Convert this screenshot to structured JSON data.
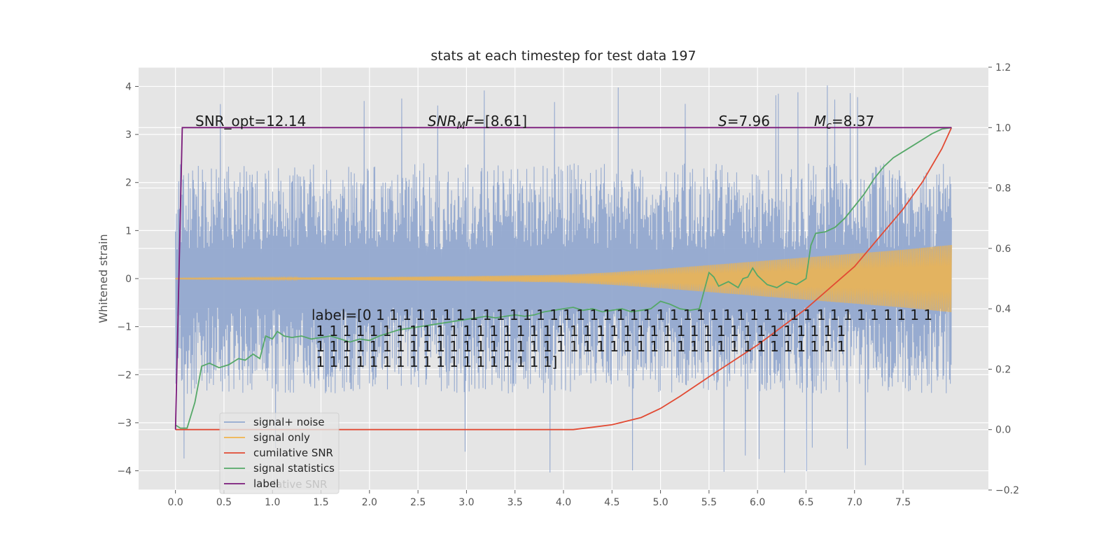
{
  "chart_data": {
    "type": "line",
    "title": "stats at each timestep for test data 197",
    "xlabel": "",
    "ylabel": "Whitened strain",
    "y2label": "",
    "xlim": [
      -0.38,
      8.38
    ],
    "ylim": [
      -4.4,
      4.4
    ],
    "y2lim": [
      -0.2,
      1.2
    ],
    "x_ticks": [
      "0.0",
      "0.5",
      "1.0",
      "1.5",
      "2.0",
      "2.5",
      "3.0",
      "3.5",
      "4.0",
      "4.5",
      "5.0",
      "5.5",
      "6.0",
      "6.5",
      "7.0",
      "7.5"
    ],
    "y_ticks": [
      "4",
      "3",
      "2",
      "1",
      "0",
      "−1",
      "−2",
      "−3",
      "−4"
    ],
    "y2_ticks": [
      "1.2",
      "1.0",
      "0.8",
      "0.6",
      "0.4",
      "0.2",
      "0.0",
      "−0.2"
    ],
    "grid": true,
    "background": "#e5e5e5",
    "legend_position": "lower-left",
    "annotations": {
      "snr_opt": "SNR_opt=12.14",
      "snr_mf": "SNR",
      "snr_mf_sub": "M",
      "snr_mf_tail": "F=[8.61]",
      "s_val": "S=7.96",
      "mc_val": "M",
      "mc_sub": "c",
      "mc_tail": "=8.37",
      "label_lines": [
        "label=[0 1 1 1 1 1 1 1 1 1 1 1 1 1 1 1 1 1 1 1 1 1 1 1 1 1 1 1 1 1 1 1 1 1 1 1 1 1 1 1 1 1 1",
        " 1 1 1 1 1 1 1 1 1 1 1 1 1 1 1 1 1 1 1 1 1 1 1 1 1 1 1 1 1 1 1 1 1 1 1 1 1 1 1 1",
        " 1 1 1 1 1 1 1 1 1 1 1 1 1 1 1 1 1 1 1 1 1 1 1 1 1 1 1 1 1 1 1 1 1 1 1 1 1 1 1 1",
        " 1 1 1 1 1 1 1 1 1 1 1 1 1 1 1 1 1 1]"
      ],
      "ghost_legend_text": "lative SNR"
    },
    "series": [
      {
        "name": "signal+ noise",
        "color": "#92a8cf",
        "axis": "left",
        "noise_amplitude_typical": 2.4,
        "noise_amplitude_max": 4.05,
        "x_range": [
          0.0,
          8.0
        ]
      },
      {
        "name": "signal only",
        "color": "#f0b44c",
        "axis": "left",
        "envelope_x": [
          0.0,
          1.0,
          2.0,
          3.0,
          4.0,
          4.5,
          5.0,
          5.5,
          6.0,
          6.5,
          7.0,
          7.5,
          8.0
        ],
        "envelope_y": [
          0.01,
          0.02,
          0.03,
          0.05,
          0.08,
          0.13,
          0.2,
          0.28,
          0.36,
          0.44,
          0.52,
          0.6,
          0.7
        ]
      },
      {
        "name": "cumilative SNR",
        "color": "#e24a33",
        "axis": "right",
        "x": [
          0.0,
          0.5,
          1.0,
          1.5,
          2.0,
          2.5,
          3.0,
          3.5,
          4.0,
          4.1,
          4.3,
          4.5,
          4.8,
          5.0,
          5.2,
          5.5,
          6.0,
          6.5,
          7.0,
          7.5,
          7.7,
          7.9,
          8.0
        ],
        "y": [
          0.0,
          0.0,
          0.0,
          0.0,
          0.0,
          0.0,
          0.0,
          0.0,
          0.0,
          0.0,
          0.008,
          0.016,
          0.04,
          0.07,
          0.11,
          0.175,
          0.28,
          0.4,
          0.54,
          0.73,
          0.82,
          0.93,
          1.0
        ]
      },
      {
        "name": "signal statistics",
        "color": "#55a868",
        "axis": "right",
        "x": [
          0.0,
          0.05,
          0.12,
          0.2,
          0.27,
          0.35,
          0.45,
          0.55,
          0.65,
          0.72,
          0.8,
          0.87,
          0.93,
          1.0,
          1.05,
          1.12,
          1.2,
          1.3,
          1.4,
          1.5,
          1.6,
          1.7,
          1.8,
          1.9,
          2.0,
          2.1,
          2.2,
          2.3,
          2.4,
          2.5,
          2.6,
          2.7,
          2.8,
          2.9,
          3.0,
          3.1,
          3.2,
          3.3,
          3.4,
          3.5,
          3.6,
          3.7,
          3.8,
          3.9,
          4.0,
          4.1,
          4.2,
          4.3,
          4.4,
          4.5,
          4.6,
          4.7,
          4.8,
          4.9,
          5.0,
          5.1,
          5.2,
          5.3,
          5.4,
          5.5,
          5.55,
          5.6,
          5.7,
          5.8,
          5.85,
          5.9,
          5.95,
          6.0,
          6.1,
          6.2,
          6.3,
          6.4,
          6.5,
          6.55,
          6.6,
          6.7,
          6.8,
          6.9,
          7.0,
          7.1,
          7.2,
          7.3,
          7.4,
          7.5,
          7.6,
          7.7,
          7.8,
          7.9,
          8.0
        ],
        "y": [
          0.015,
          0.005,
          0.005,
          0.09,
          0.21,
          0.22,
          0.205,
          0.215,
          0.235,
          0.23,
          0.25,
          0.235,
          0.31,
          0.3,
          0.325,
          0.31,
          0.305,
          0.31,
          0.3,
          0.305,
          0.31,
          0.3,
          0.29,
          0.3,
          0.295,
          0.31,
          0.32,
          0.33,
          0.335,
          0.34,
          0.345,
          0.35,
          0.355,
          0.36,
          0.365,
          0.37,
          0.375,
          0.37,
          0.375,
          0.38,
          0.375,
          0.38,
          0.39,
          0.395,
          0.4,
          0.405,
          0.395,
          0.4,
          0.39,
          0.395,
          0.4,
          0.39,
          0.395,
          0.4,
          0.425,
          0.415,
          0.4,
          0.395,
          0.4,
          0.52,
          0.505,
          0.475,
          0.49,
          0.47,
          0.5,
          0.505,
          0.535,
          0.51,
          0.48,
          0.47,
          0.49,
          0.48,
          0.5,
          0.61,
          0.65,
          0.655,
          0.67,
          0.7,
          0.74,
          0.78,
          0.83,
          0.87,
          0.9,
          0.92,
          0.94,
          0.96,
          0.98,
          0.995,
          1.0
        ]
      },
      {
        "name": "label",
        "color": "#7a1a7a",
        "axis": "right",
        "x": [
          0.0,
          0.07,
          8.0
        ],
        "y": [
          0.0,
          1.0,
          1.0
        ]
      }
    ]
  }
}
